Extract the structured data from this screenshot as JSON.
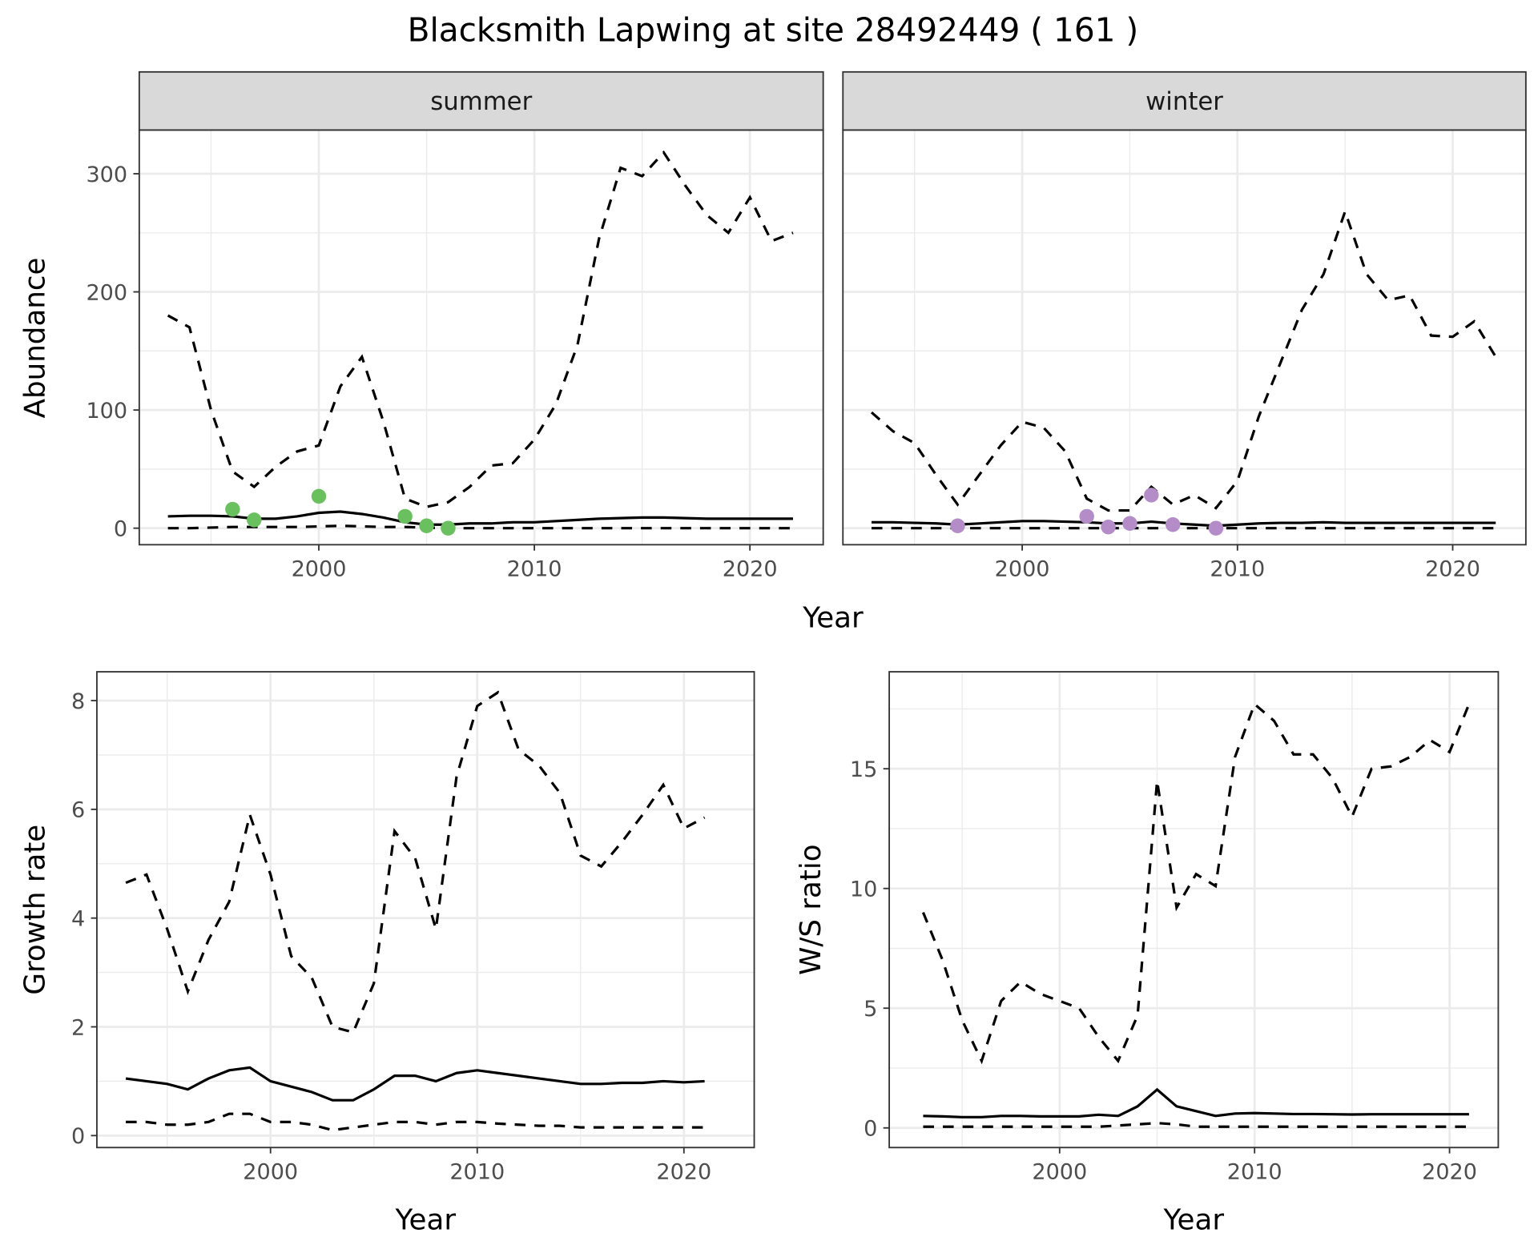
{
  "title": "Blacksmith Lapwing at site 28492449 ( 161 )",
  "colors": {
    "summer_points": "#6abf5e",
    "winter_points": "#b48cc8",
    "lines": "#000000",
    "strip": "#d9d9d9",
    "grid": "#ebebeb"
  },
  "chart_data": [
    {
      "type": "line",
      "facet": "summer",
      "xlabel": "Year",
      "ylabel": "Abundance",
      "xlim": [
        1991.67,
        2023.4
      ],
      "ylim": [
        -14,
        337
      ],
      "xticks": [
        2000,
        2010,
        2020
      ],
      "yticks": [
        0,
        100,
        200,
        300
      ],
      "grid": true,
      "x": [
        1993,
        1994,
        1995,
        1996,
        1997,
        1998,
        1999,
        2000,
        2001,
        2002,
        2003,
        2004,
        2005,
        2006,
        2007,
        2008,
        2009,
        2010,
        2011,
        2012,
        2013,
        2014,
        2015,
        2016,
        2017,
        2018,
        2019,
        2020,
        2021,
        2022
      ],
      "series": [
        {
          "style": "dashed",
          "values": [
            180,
            170,
            100,
            48,
            35,
            52,
            65,
            70,
            120,
            145,
            90,
            25,
            18,
            22,
            35,
            53,
            55,
            75,
            105,
            155,
            245,
            305,
            298,
            318,
            290,
            265,
            250,
            280,
            243,
            250
          ]
        },
        {
          "style": "solid",
          "values": [
            10,
            10.5,
            10.5,
            10,
            8,
            8,
            10,
            13,
            14,
            12,
            9,
            5,
            3,
            3,
            4,
            4,
            5,
            5,
            6,
            7,
            8,
            8.5,
            9,
            9,
            8.5,
            8,
            8,
            8,
            8,
            8
          ]
        },
        {
          "style": "dashed",
          "values": [
            0,
            0,
            0.5,
            1,
            1,
            1,
            1,
            1.5,
            2,
            1.5,
            1,
            1,
            0.5,
            0,
            0,
            0,
            0,
            0,
            0,
            0,
            0,
            0,
            0,
            0,
            0,
            0,
            0,
            0,
            0,
            0
          ]
        }
      ],
      "points": {
        "x": [
          1996,
          1997,
          2000,
          2004,
          2005,
          2006
        ],
        "y": [
          16,
          7,
          27,
          10,
          2,
          0
        ]
      }
    },
    {
      "type": "line",
      "facet": "winter",
      "xlabel": "Year",
      "xlim": [
        1991.67,
        2023.4
      ],
      "ylim": [
        -14,
        337
      ],
      "xticks": [
        2000,
        2010,
        2020
      ],
      "grid": true,
      "x": [
        1993,
        1994,
        1995,
        1996,
        1997,
        1998,
        1999,
        2000,
        2001,
        2002,
        2003,
        2004,
        2005,
        2006,
        2007,
        2008,
        2009,
        2010,
        2011,
        2012,
        2013,
        2014,
        2015,
        2016,
        2017,
        2018,
        2019,
        2020,
        2021,
        2022
      ],
      "series": [
        {
          "style": "dashed",
          "values": [
            98,
            82,
            72,
            45,
            20,
            45,
            70,
            90,
            85,
            65,
            25,
            15,
            15,
            35,
            20,
            28,
            17,
            40,
            95,
            140,
            185,
            215,
            268,
            215,
            193,
            197,
            163,
            162,
            175,
            145
          ]
        },
        {
          "style": "solid",
          "values": [
            5,
            5,
            4.5,
            4,
            3,
            4,
            5,
            6,
            6,
            5.5,
            5,
            4,
            4,
            5.5,
            4,
            3,
            2,
            3,
            4,
            4.5,
            4.5,
            5,
            4.5,
            4.5,
            4.5,
            4.5,
            4.5,
            4.5,
            4.5,
            4.5
          ]
        },
        {
          "style": "dashed",
          "values": [
            0,
            0,
            0,
            0,
            0,
            0,
            0,
            0,
            0,
            0,
            0,
            0,
            0,
            0,
            0,
            0,
            0,
            0,
            0,
            0,
            0,
            0,
            0,
            0,
            0,
            0,
            0,
            0,
            0,
            0
          ]
        }
      ],
      "points": {
        "x": [
          1997,
          2003,
          2004,
          2005,
          2006,
          2007,
          2009
        ],
        "y": [
          2,
          10,
          1,
          4,
          28,
          3,
          0
        ]
      }
    },
    {
      "type": "line",
      "xlabel": "Year",
      "ylabel": "Growth rate",
      "xlim": [
        1991.6,
        2023.4
      ],
      "ylim": [
        -0.22,
        8.53
      ],
      "xticks": [
        2000,
        2010,
        2020
      ],
      "yticks": [
        0,
        2,
        4,
        6,
        8
      ],
      "grid": true,
      "x": [
        1993,
        1994,
        1995,
        1996,
        1997,
        1998,
        1999,
        2000,
        2001,
        2002,
        2003,
        2004,
        2005,
        2006,
        2007,
        2008,
        2009,
        2010,
        2011,
        2012,
        2013,
        2014,
        2015,
        2016,
        2017,
        2018,
        2019,
        2020,
        2021
      ],
      "series": [
        {
          "style": "dashed",
          "values": [
            4.65,
            4.8,
            3.8,
            2.65,
            3.6,
            4.3,
            5.9,
            4.8,
            3.3,
            2.9,
            2.0,
            1.9,
            2.8,
            5.6,
            5.1,
            3.8,
            6.6,
            7.9,
            8.15,
            7.1,
            6.8,
            6.3,
            5.15,
            4.95,
            5.4,
            5.9,
            6.45,
            5.65,
            5.85
          ]
        },
        {
          "style": "solid",
          "values": [
            1.05,
            1.0,
            0.95,
            0.85,
            1.05,
            1.2,
            1.25,
            1.0,
            0.9,
            0.8,
            0.65,
            0.65,
            0.85,
            1.1,
            1.1,
            1.0,
            1.15,
            1.2,
            1.15,
            1.1,
            1.05,
            1.0,
            0.95,
            0.95,
            0.97,
            0.97,
            1.0,
            0.98,
            1.0
          ]
        },
        {
          "style": "dashed",
          "values": [
            0.25,
            0.25,
            0.2,
            0.2,
            0.25,
            0.4,
            0.4,
            0.25,
            0.25,
            0.2,
            0.1,
            0.15,
            0.2,
            0.25,
            0.25,
            0.2,
            0.25,
            0.25,
            0.22,
            0.2,
            0.18,
            0.18,
            0.15,
            0.15,
            0.15,
            0.15,
            0.15,
            0.15,
            0.15
          ]
        }
      ]
    },
    {
      "type": "line",
      "xlabel": "Year",
      "ylabel": "W/S ratio",
      "xlim": [
        1991.26,
        2022.5
      ],
      "ylim": [
        -0.82,
        19.05
      ],
      "xticks": [
        2000,
        2010,
        2020
      ],
      "yticks": [
        0,
        5,
        10,
        15
      ],
      "grid": true,
      "x": [
        1993,
        1994,
        1995,
        1996,
        1997,
        1998,
        1999,
        2000,
        2001,
        2002,
        2003,
        2004,
        2005,
        2006,
        2007,
        2008,
        2009,
        2010,
        2011,
        2012,
        2013,
        2014,
        2015,
        2016,
        2017,
        2018,
        2019,
        2020,
        2021
      ],
      "series": [
        {
          "style": "dashed",
          "values": [
            9.0,
            7.0,
            4.5,
            2.8,
            5.3,
            6.1,
            5.6,
            5.3,
            5.0,
            3.8,
            2.8,
            4.7,
            14.5,
            9.2,
            10.6,
            10.1,
            15.5,
            17.7,
            17.0,
            15.6,
            15.6,
            14.6,
            13.0,
            15.0,
            15.1,
            15.5,
            16.2,
            15.7,
            17.7
          ]
        },
        {
          "style": "solid",
          "values": [
            0.5,
            0.48,
            0.45,
            0.45,
            0.5,
            0.5,
            0.48,
            0.48,
            0.48,
            0.55,
            0.5,
            0.9,
            1.6,
            0.9,
            0.7,
            0.5,
            0.6,
            0.62,
            0.6,
            0.58,
            0.58,
            0.57,
            0.56,
            0.57,
            0.57,
            0.57,
            0.57,
            0.57,
            0.57
          ]
        },
        {
          "style": "dashed",
          "values": [
            0.05,
            0.05,
            0.05,
            0.05,
            0.05,
            0.05,
            0.05,
            0.05,
            0.05,
            0.05,
            0.1,
            0.15,
            0.2,
            0.15,
            0.05,
            0.05,
            0.05,
            0.05,
            0.05,
            0.05,
            0.05,
            0.05,
            0.05,
            0.05,
            0.05,
            0.05,
            0.05,
            0.05,
            0.05
          ]
        }
      ]
    }
  ]
}
